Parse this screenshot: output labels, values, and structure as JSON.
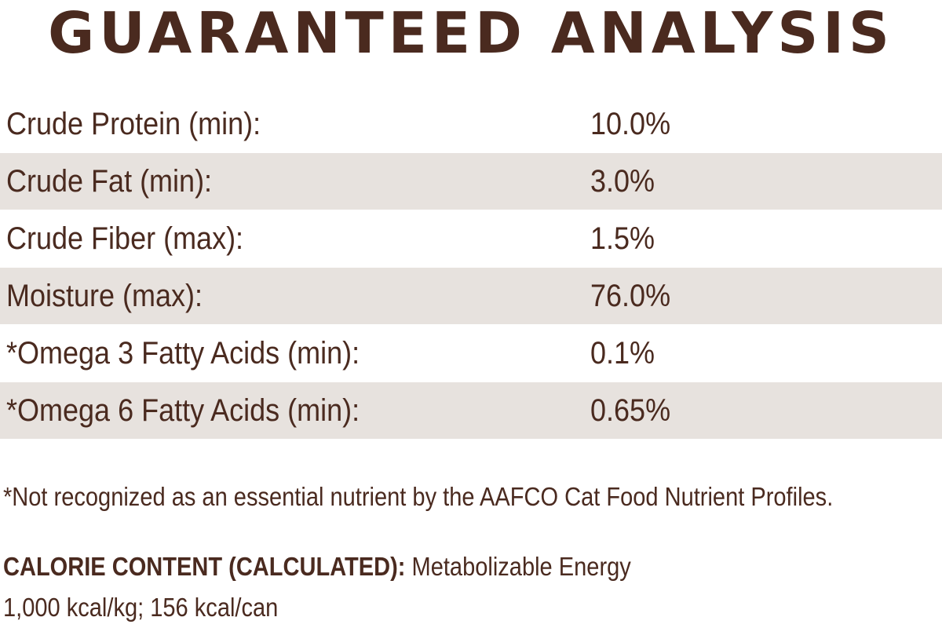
{
  "title": "GUARANTEED ANALYSIS",
  "rows": [
    {
      "label": "Crude Protein (min):",
      "value": "10.0%"
    },
    {
      "label": "Crude Fat (min):",
      "value": "3.0%"
    },
    {
      "label": "Crude Fiber (max):",
      "value": "1.5%"
    },
    {
      "label": "Moisture (max):",
      "value": "76.0%"
    },
    {
      "label": "*Omega 3 Fatty Acids (min):",
      "value": "0.1%"
    },
    {
      "label": "*Omega 6 Fatty Acids (min):",
      "value": "0.65%"
    }
  ],
  "footnote": "*Not recognized as an essential nutrient by the AAFCO Cat Food Nutrient Profiles.",
  "calorie": {
    "heading": "CALORIE CONTENT (CALCULATED):",
    "text": " Metabolizable Energy",
    "values": "1,000 kcal/kg; 156 kcal/can"
  },
  "colors": {
    "text": "#4a2a1f",
    "row_shade": "#e7e2de",
    "background": "#ffffff"
  }
}
